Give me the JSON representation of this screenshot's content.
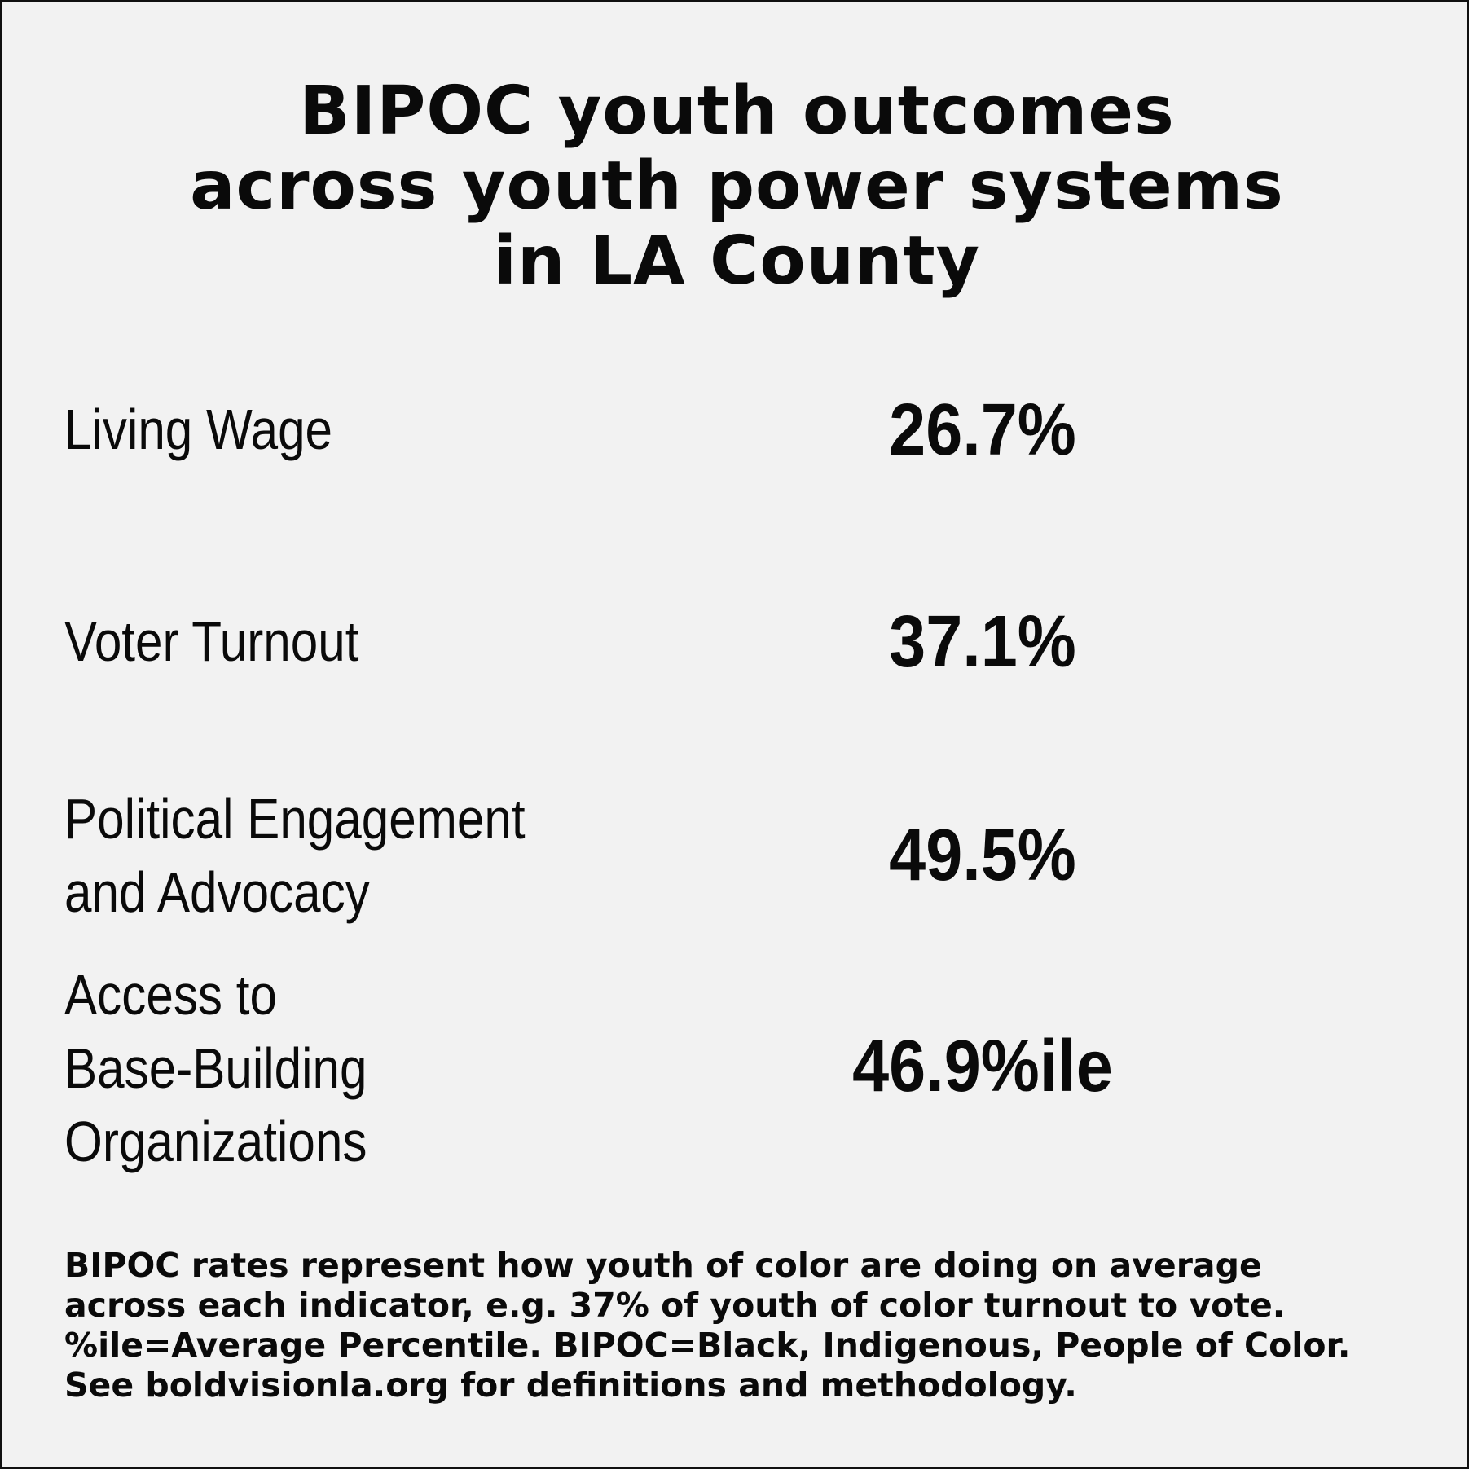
{
  "title": {
    "lines": [
      "BIPOC youth outcomes",
      "across youth power systems",
      "in LA County"
    ]
  },
  "rows": [
    {
      "label_lines": [
        "Living Wage"
      ],
      "value": "26.7%"
    },
    {
      "label_lines": [
        "Voter Turnout"
      ],
      "value": "37.1%"
    },
    {
      "label_lines": [
        "Political Engagement",
        "and Advocacy"
      ],
      "value": "49.5%"
    },
    {
      "label_lines": [
        "Access to",
        "Base-Building",
        "Organizations"
      ],
      "value": "46.9%ile"
    }
  ],
  "footnote": {
    "lines": [
      "BIPOC rates represent how youth of color are doing on average",
      "across each indicator, e.g. 37% of youth of color turnout to vote.",
      "%ile=Average Percentile. BIPOC=Black, Indigenous, People of Color.",
      "See boldvisionla.org for definitions and methodology."
    ]
  }
}
